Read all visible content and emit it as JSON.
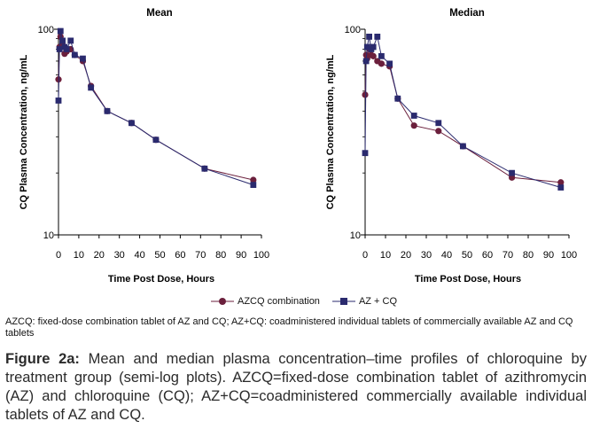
{
  "chart_data": [
    {
      "type": "line",
      "title": "Mean",
      "xlabel": "Time Post Dose, Hours",
      "ylabel": "CQ Plasma Concentration, ng/mL",
      "yscale": "log",
      "xlim": [
        0,
        100
      ],
      "ylim": [
        10,
        100
      ],
      "xticks": [
        0,
        10,
        20,
        30,
        40,
        50,
        60,
        70,
        80,
        90,
        100
      ],
      "yticks": [
        10,
        100
      ],
      "x": [
        0,
        0.5,
        1,
        2,
        3,
        4,
        6,
        8,
        12,
        16,
        24,
        36,
        48,
        72,
        96
      ],
      "series": [
        {
          "name": "AZCQ combination",
          "marker": "circle",
          "color": "#6b1f3c",
          "values": [
            57,
            82,
            92,
            84,
            76,
            78,
            80,
            75,
            70,
            53,
            40,
            35,
            29,
            21,
            18.5
          ]
        },
        {
          "name": "AZ + CQ",
          "marker": "square",
          "color": "#2a2a6e",
          "values": [
            45,
            80,
            98,
            88,
            82,
            80,
            88,
            75,
            72,
            52,
            40,
            35,
            29,
            21,
            17.5
          ]
        }
      ]
    },
    {
      "type": "line",
      "title": "Median",
      "xlabel": "Time Post Dose, Hours",
      "ylabel": "CQ Plasma Concentration, ng/mL",
      "yscale": "log",
      "xlim": [
        0,
        100
      ],
      "ylim": [
        10,
        100
      ],
      "xticks": [
        0,
        10,
        20,
        30,
        40,
        50,
        60,
        70,
        80,
        90,
        100
      ],
      "yticks": [
        10,
        100
      ],
      "x": [
        0,
        0.5,
        1,
        2,
        3,
        4,
        6,
        8,
        12,
        16,
        24,
        36,
        48,
        72,
        96
      ],
      "series": [
        {
          "name": "AZCQ combination",
          "marker": "circle",
          "color": "#6b1f3c",
          "values": [
            48,
            75,
            72,
            80,
            75,
            74,
            70,
            68,
            66,
            46,
            34,
            32,
            27,
            19,
            18
          ]
        },
        {
          "name": "AZ + CQ",
          "marker": "square",
          "color": "#2a2a6e",
          "values": [
            25,
            70,
            82,
            92,
            80,
            82,
            92,
            74,
            68,
            46,
            38,
            35,
            27,
            20,
            17
          ]
        }
      ]
    }
  ],
  "legend": {
    "items": [
      {
        "label": "AZCQ combination"
      },
      {
        "label": "AZ + CQ"
      }
    ]
  },
  "footnote": "AZCQ: fixed-dose combination tablet of AZ and CQ; AZ+CQ: coadministered individual tablets of commercially available AZ and CQ tablets",
  "caption": {
    "label": "Figure 2a:",
    "text": " Mean and median plasma concentration–time profiles of chloroquine by treatment group (semi-log plots). AZCQ=fixed-dose combination tablet of azithromycin (AZ) and chloroquine (CQ); AZ+CQ=coadministered commercially available individual tablets of AZ and CQ."
  }
}
